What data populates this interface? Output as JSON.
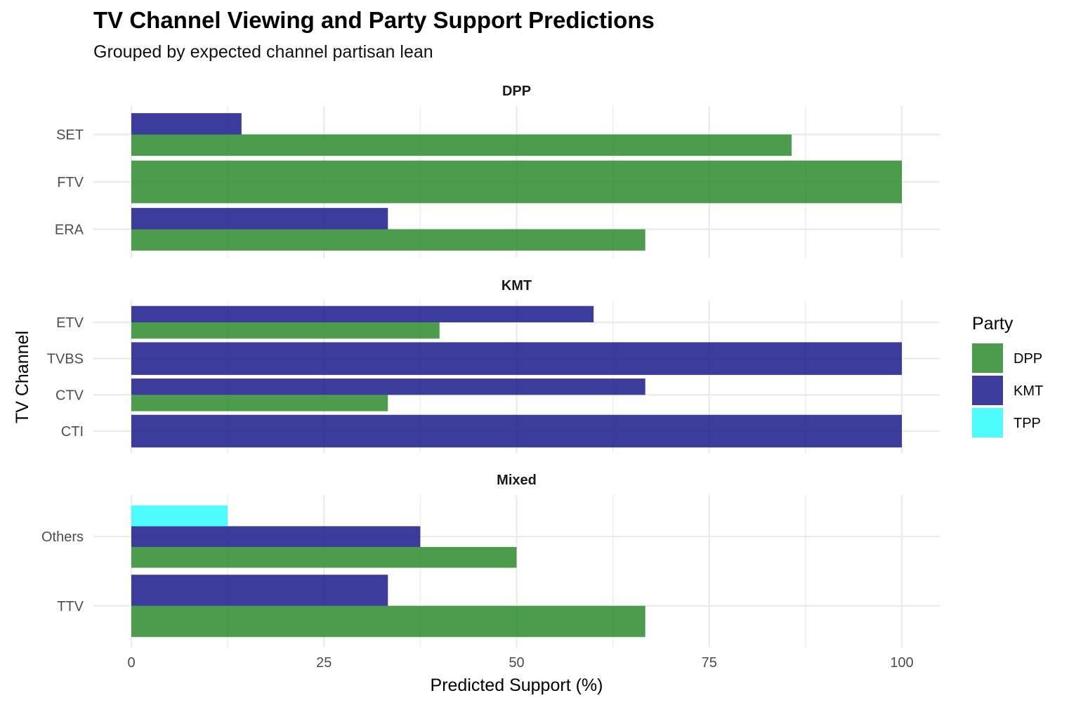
{
  "title": "TV Channel Viewing and Party Support Predictions",
  "subtitle": "Grouped by expected channel partisan lean",
  "chart_data": {
    "type": "bar",
    "orientation": "horizontal",
    "title": "TV Channel Viewing and Party Support Predictions",
    "subtitle": "Grouped by expected channel partisan lean",
    "xlabel": "Predicted Support (%)",
    "ylabel": "TV Channel",
    "xlim": [
      0,
      100
    ],
    "x_ticks": [
      0,
      25,
      50,
      75,
      100
    ],
    "grid": true,
    "legend": {
      "title": "Party",
      "position": "right",
      "entries": [
        {
          "name": "DPP",
          "color": "#2e8b2e"
        },
        {
          "name": "KMT",
          "color": "#1a1a8c"
        },
        {
          "name": "TPP",
          "color": "#2efdfd"
        }
      ]
    },
    "facets": [
      {
        "name": "DPP",
        "channels": [
          {
            "name": "SET",
            "values": {
              "DPP": 85.7,
              "KMT": 14.3,
              "TPP": 0
            }
          },
          {
            "name": "FTV",
            "values": {
              "DPP": 100,
              "KMT": 0,
              "TPP": 0
            }
          },
          {
            "name": "ERA",
            "values": {
              "DPP": 66.7,
              "KMT": 33.3,
              "TPP": 0
            }
          }
        ]
      },
      {
        "name": "KMT",
        "channels": [
          {
            "name": "ETV",
            "values": {
              "DPP": 40,
              "KMT": 60,
              "TPP": 0
            }
          },
          {
            "name": "TVBS",
            "values": {
              "DPP": 0,
              "KMT": 100,
              "TPP": 0
            }
          },
          {
            "name": "CTV",
            "values": {
              "DPP": 33.3,
              "KMT": 66.7,
              "TPP": 0
            }
          },
          {
            "name": "CTI",
            "values": {
              "DPP": 0,
              "KMT": 100,
              "TPP": 0
            }
          }
        ]
      },
      {
        "name": "Mixed",
        "channels": [
          {
            "name": "Others",
            "values": {
              "DPP": 50,
              "KMT": 37.5,
              "TPP": 12.5
            }
          },
          {
            "name": "TTV",
            "values": {
              "DPP": 66.7,
              "KMT": 33.3,
              "TPP": 0
            }
          }
        ]
      }
    ]
  }
}
